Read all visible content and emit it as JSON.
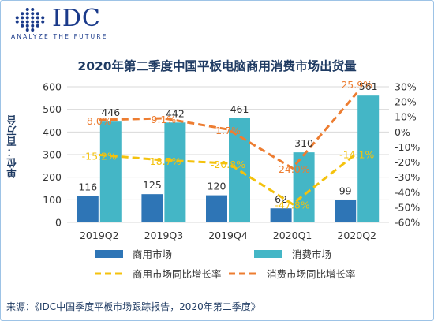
{
  "logo": {
    "text": "IDC",
    "tagline": "ANALYZE THE FUTURE",
    "icon": "idc-dot-globe-icon"
  },
  "title": "2020年第二季度中国平板电脑商用消费市场出货量",
  "ylabel": "单位：百万台",
  "source": "来源：《IDC中国季度平板市场跟踪报告，2020年第二季度》",
  "colors": {
    "commercial": "#2e75b6",
    "consumer": "#44b6c6",
    "commercial_yoy": "#f4c20d",
    "consumer_yoy": "#ed7d31",
    "text": "#1f3b63"
  },
  "chart_data": {
    "type": "bar",
    "categories": [
      "2019Q2",
      "2019Q3",
      "2019Q4",
      "2020Q1",
      "2020Q2"
    ],
    "series": [
      {
        "name": "商用市场",
        "type": "bar",
        "axis": "left",
        "values": [
          116,
          125,
          120,
          62,
          99
        ],
        "labels": [
          "116",
          "125",
          "120",
          "62",
          "99"
        ]
      },
      {
        "name": "消费市场",
        "type": "bar",
        "axis": "left",
        "values": [
          446,
          442,
          461,
          310,
          561
        ],
        "labels": [
          "446",
          "442",
          "461",
          "310",
          "561"
        ]
      },
      {
        "name": "商用市场同比增长率",
        "type": "line",
        "style": "dashed",
        "axis": "right",
        "values": [
          -15.2,
          -18.7,
          -20.8,
          -47.8,
          -14.1
        ],
        "labels": [
          "-15.2%",
          "-18.7%",
          "-20.8%",
          "-47.8%",
          "-14.1%"
        ]
      },
      {
        "name": "消费市场同比增长率",
        "type": "line",
        "style": "dashed",
        "axis": "right",
        "values": [
          8.0,
          9.1,
          1.7,
          -24.0,
          25.9
        ],
        "labels": [
          "8.0%",
          "9.1%",
          "1.7%",
          "-24.0%",
          "25.9%"
        ]
      }
    ],
    "ylim": [
      0,
      600
    ],
    "yticks": [
      "0",
      "100",
      "200",
      "300",
      "400",
      "500",
      "600"
    ],
    "y2lim": [
      -60,
      30
    ],
    "y2ticks": [
      "-60%",
      "-50%",
      "-40%",
      "-30%",
      "-20%",
      "-10%",
      "0%",
      "10%",
      "20%",
      "30%"
    ],
    "grid": true,
    "legend_position": "bottom"
  }
}
